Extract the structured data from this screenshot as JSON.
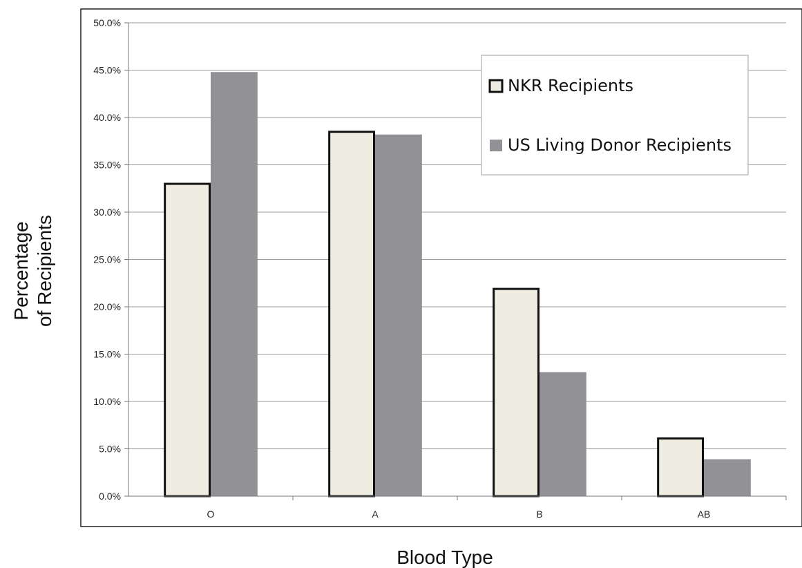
{
  "chart_data": {
    "type": "bar",
    "categories": [
      "O",
      "A",
      "B",
      "AB"
    ],
    "series": [
      {
        "name": "NKR Recipients",
        "values": [
          33.1,
          38.6,
          22.0,
          6.2
        ],
        "color": "#efece2",
        "stroke": "#111111"
      },
      {
        "name": "US Living Donor Recipients",
        "values": [
          44.8,
          38.2,
          13.1,
          3.9
        ],
        "color": "#929296",
        "stroke": "none"
      }
    ],
    "xlabel": "Blood Type",
    "ylabel_lines": [
      "Percentage",
      "of Recipients"
    ],
    "ylim": [
      0,
      50
    ],
    "yticks": [
      "0.0%",
      "5.0%",
      "10.0%",
      "15.0%",
      "20.0%",
      "25.0%",
      "30.0%",
      "35.0%",
      "40.0%",
      "45.0%",
      "50.0%"
    ],
    "grid": true,
    "legend_position": "top-right"
  }
}
